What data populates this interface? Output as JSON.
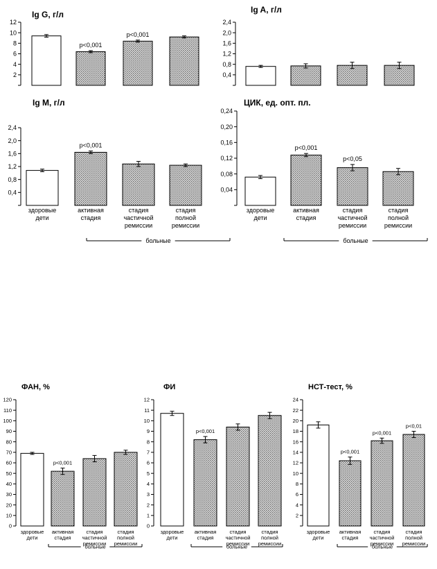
{
  "chart_data": [
    {
      "type": "bar",
      "title": "Ig G, г/л",
      "categories": [
        "здоровые дети",
        "активная стадия",
        "стадия частичной ремиссии",
        "стадия полной ремиссии"
      ],
      "category_labels": [],
      "values": [
        9.4,
        6.4,
        8.4,
        9.2
      ],
      "errors": [
        0.25,
        0.2,
        0.2,
        0.2
      ],
      "annotations": [
        "",
        "p<0,001",
        "p<0,001",
        ""
      ],
      "ylim": [
        0,
        12
      ],
      "yticks": [
        "2",
        "4",
        "6",
        "8",
        "10",
        "12"
      ],
      "group_label": "",
      "colors": {
        "healthy": "#ffffff",
        "patients": "#bdbdbd"
      }
    },
    {
      "type": "bar",
      "title": "Ig A, г/л",
      "categories": [
        "здоровые дети",
        "активная стадия",
        "стадия частичной ремиссии",
        "стадия полной ремиссии"
      ],
      "category_labels": [],
      "values": [
        0.72,
        0.74,
        0.76,
        0.76
      ],
      "errors": [
        0.04,
        0.08,
        0.12,
        0.12
      ],
      "annotations": [
        "",
        "",
        "",
        ""
      ],
      "ylim": [
        0,
        2.4
      ],
      "yticks": [
        "0,4",
        "0,8",
        "1,2",
        "1,6",
        "2,0",
        "2,4"
      ],
      "group_label": "",
      "colors": {
        "healthy": "#ffffff",
        "patients": "#bdbdbd"
      }
    },
    {
      "type": "bar",
      "title": "Ig M, г/л",
      "categories": [
        "здоровые дети",
        "активная стадия",
        "стадия частичной ремиссии",
        "стадия полной ремиссии"
      ],
      "category_labels": [
        "здоровые\nдети",
        "активная\nстадия",
        "стадия\nчастичной\nремиссии",
        "стадия\nполной\nремиссии"
      ],
      "values": [
        1.08,
        1.64,
        1.28,
        1.24
      ],
      "errors": [
        0.04,
        0.04,
        0.08,
        0.04
      ],
      "annotations": [
        "",
        "p<0,001",
        "",
        ""
      ],
      "ylim": [
        0,
        2.4
      ],
      "yticks": [
        "0,4",
        "0,8",
        "1,2",
        "1,6",
        "2,0",
        "2,4"
      ],
      "group_label": "больные",
      "colors": {
        "healthy": "#ffffff",
        "patients": "#bdbdbd"
      }
    },
    {
      "type": "bar",
      "title": "ЦИК, ед. опт. пл.",
      "categories": [
        "здоровые дети",
        "активная стадия",
        "стадия частичной ремиссии",
        "стадия полной ремиссии"
      ],
      "category_labels": [
        "здоровые\nдети",
        "активная\nстадия",
        "стадия\nчастичной\nремиссии",
        "стадия\nполной\nремиссии"
      ],
      "values": [
        0.072,
        0.128,
        0.096,
        0.086
      ],
      "errors": [
        0.004,
        0.004,
        0.008,
        0.008
      ],
      "annotations": [
        "",
        "p<0,001",
        "p<0,05",
        ""
      ],
      "ylim": [
        0,
        0.24
      ],
      "yticks": [
        "0,04",
        "0,08",
        "0,12",
        "0,16",
        "0,20",
        "0,24"
      ],
      "group_label": "больные",
      "colors": {
        "healthy": "#ffffff",
        "patients": "#bdbdbd"
      }
    },
    {
      "type": "bar",
      "title": "ФАН, %",
      "categories": [
        "здоровые дети",
        "активная стадия",
        "стадия частичной ремиссии",
        "стадия полной ремиссии"
      ],
      "category_labels": [
        "здоровые\nдети",
        "активная\nстадия",
        "стадия\nчастичной\nремиссии",
        "стадия\nполной\nремиссии"
      ],
      "values": [
        69,
        52,
        64,
        70
      ],
      "errors": [
        1,
        3,
        3,
        2
      ],
      "annotations": [
        "",
        "p<0,001",
        "",
        ""
      ],
      "ylim": [
        0,
        120
      ],
      "yticks": [
        "0",
        "10",
        "20",
        "30",
        "40",
        "50",
        "60",
        "70",
        "80",
        "90",
        "100",
        "110",
        "120"
      ],
      "group_label": "больные",
      "colors": {
        "healthy": "#ffffff",
        "patients": "#bdbdbd"
      }
    },
    {
      "type": "bar",
      "title": "ФИ",
      "categories": [
        "здоровые дети",
        "активная стадия",
        "стадия частичной ремиссии",
        "стадия полной ремиссии"
      ],
      "category_labels": [
        "здоровые\nдети",
        "активная\nстадия",
        "стадия\nчастичной\nремиссии",
        "стадия\nполной\nремиссии"
      ],
      "values": [
        10.7,
        8.2,
        9.4,
        10.5
      ],
      "errors": [
        0.2,
        0.3,
        0.3,
        0.3
      ],
      "annotations": [
        "",
        "p<0,001",
        "",
        ""
      ],
      "ylim": [
        0,
        12
      ],
      "yticks": [
        "0",
        "1",
        "2",
        "3",
        "4",
        "5",
        "6",
        "7",
        "8",
        "9",
        "10",
        "11",
        "12"
      ],
      "group_label": "больные",
      "colors": {
        "healthy": "#ffffff",
        "patients": "#bdbdbd"
      }
    },
    {
      "type": "bar",
      "title": "НСТ-тест, %",
      "categories": [
        "здоровые дети",
        "активная стадия",
        "стадия частичной ремиссии",
        "стадия полной ремиссии"
      ],
      "category_labels": [
        "здоровые\nдети",
        "активная\nстадия",
        "стадия\nчастичной\nремиссии",
        "стадия\nполной\nремиссии"
      ],
      "values": [
        19.2,
        12.4,
        16.2,
        17.4
      ],
      "errors": [
        0.6,
        0.7,
        0.5,
        0.6
      ],
      "annotations": [
        "",
        "p<0,001",
        "p<0,001",
        "p<0,01"
      ],
      "ylim": [
        0,
        24
      ],
      "yticks": [
        "2",
        "4",
        "6",
        "8",
        "10",
        "12",
        "14",
        "16",
        "18",
        "20",
        "22",
        "24"
      ],
      "group_label": "больные",
      "colors": {
        "healthy": "#ffffff",
        "patients": "#bdbdbd"
      }
    }
  ]
}
